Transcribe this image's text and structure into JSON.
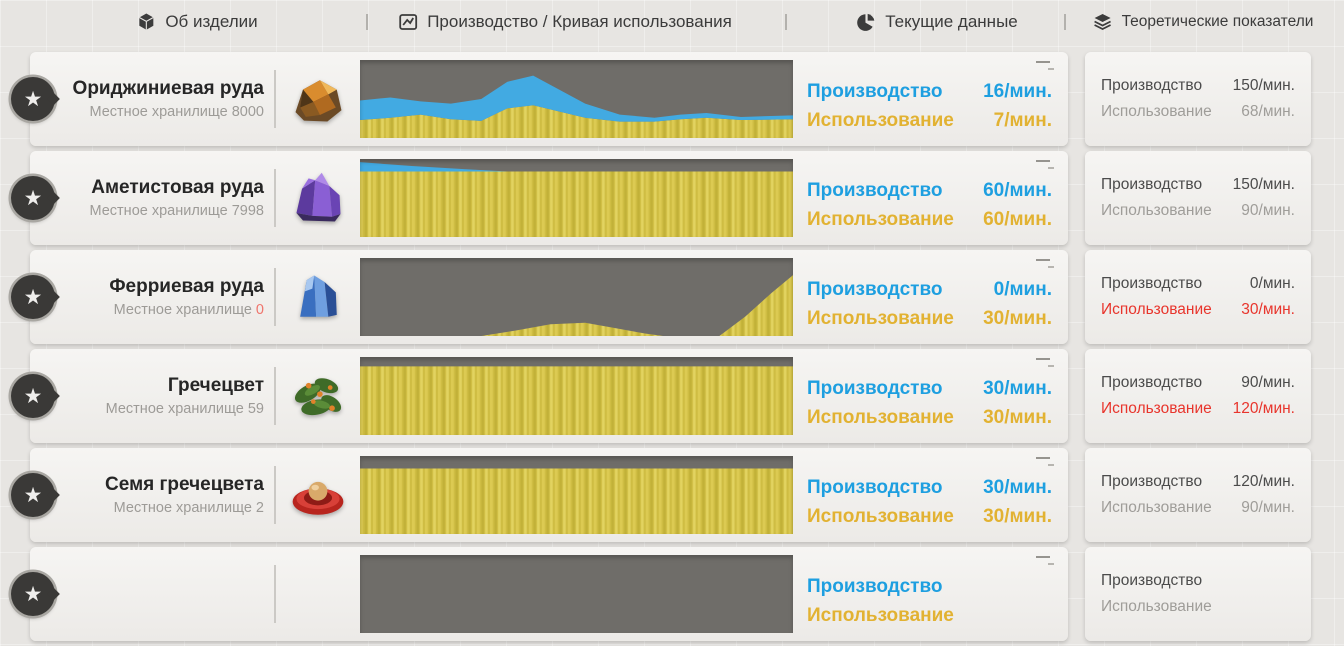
{
  "header": {
    "separator": "|",
    "tabs": [
      {
        "id": "about-item",
        "label": "Об изделии",
        "icon": "cube-icon"
      },
      {
        "id": "production-curve",
        "label": "Производство / Кривая использования",
        "icon": "line-chart-icon"
      },
      {
        "id": "current-data",
        "label": "Текущие данные",
        "icon": "pie-chart-icon"
      },
      {
        "id": "theoretical",
        "label": "Теоретические показатели",
        "icon": "layers-icon"
      }
    ]
  },
  "labels": {
    "production": "Производство",
    "usage": "Использование"
  },
  "colors": {
    "production_text": "#1e9fe0",
    "usage_text": "#e2b232",
    "alert_red": "#e8352c",
    "storage_alert": "#ef756c",
    "chart_bg": "#6f6d69",
    "chart_usage": "#d2c045",
    "chart_production": "#42aae2"
  },
  "rows": [
    {
      "name": "Ориджиниевая руда",
      "storage_label": "Местное хранилище",
      "storage_value": "8000",
      "storage_alert": false,
      "icon": "originium-ore-icon",
      "current": {
        "production_value": "16/мин.",
        "usage_value": "7/мин."
      },
      "theoretical": {
        "production_value": "150/мин.",
        "usage_value": "68/мин.",
        "usage_alert": false
      }
    },
    {
      "name": "Аметистовая руда",
      "storage_label": "Местное хранилище",
      "storage_value": "7998",
      "storage_alert": false,
      "icon": "amethyst-ore-icon",
      "current": {
        "production_value": "60/мин.",
        "usage_value": "60/мин."
      },
      "theoretical": {
        "production_value": "150/мин.",
        "usage_value": "90/мин.",
        "usage_alert": false
      }
    },
    {
      "name": "Ферриевая руда",
      "storage_label": "Местное хранилище",
      "storage_value": "0",
      "storage_alert": true,
      "icon": "ferric-ore-icon",
      "current": {
        "production_value": "0/мин.",
        "usage_value": "30/мин."
      },
      "theoretical": {
        "production_value": "0/мин.",
        "usage_value": "30/мин.",
        "usage_alert": true
      }
    },
    {
      "name": "Гречецвет",
      "storage_label": "Местное хранилище",
      "storage_value": "59",
      "storage_alert": false,
      "icon": "buckflower-icon",
      "current": {
        "production_value": "30/мин.",
        "usage_value": "30/мин."
      },
      "theoretical": {
        "production_value": "90/мин.",
        "usage_value": "120/мин.",
        "usage_alert": true
      }
    },
    {
      "name": "Семя гречецвета",
      "storage_label": "Местное хранилище",
      "storage_value": "2",
      "storage_alert": false,
      "icon": "buckflower-seed-icon",
      "current": {
        "production_value": "30/мин.",
        "usage_value": "30/мин."
      },
      "theoretical": {
        "production_value": "120/мин.",
        "usage_value": "90/мин.",
        "usage_alert": false
      }
    },
    {
      "name": "",
      "storage_label": "",
      "storage_value": "",
      "storage_alert": false,
      "icon": "item-icon",
      "partial": true,
      "current": {
        "production_value": "",
        "usage_value": ""
      },
      "theoretical": {
        "production_value": "",
        "usage_value": "",
        "usage_alert": false
      }
    }
  ],
  "chart_data": [
    {
      "type": "area",
      "series": [
        {
          "name": "Использование",
          "role": "usage",
          "color": "#d2c045",
          "points": [
            [
              0,
              0.23
            ],
            [
              0.07,
              0.26
            ],
            [
              0.14,
              0.3
            ],
            [
              0.21,
              0.24
            ],
            [
              0.28,
              0.22
            ],
            [
              0.34,
              0.38
            ],
            [
              0.4,
              0.42
            ],
            [
              0.46,
              0.34
            ],
            [
              0.52,
              0.26
            ],
            [
              0.6,
              0.21
            ],
            [
              0.68,
              0.21
            ],
            [
              0.74,
              0.24
            ],
            [
              0.8,
              0.26
            ],
            [
              0.88,
              0.23
            ],
            [
              1,
              0.24
            ]
          ]
        },
        {
          "name": "Производство",
          "role": "production",
          "color": "#42aae2",
          "points": [
            [
              0,
              0.48
            ],
            [
              0.07,
              0.52
            ],
            [
              0.14,
              0.47
            ],
            [
              0.21,
              0.44
            ],
            [
              0.28,
              0.5
            ],
            [
              0.34,
              0.72
            ],
            [
              0.4,
              0.8
            ],
            [
              0.46,
              0.62
            ],
            [
              0.52,
              0.44
            ],
            [
              0.6,
              0.3
            ],
            [
              0.68,
              0.26
            ],
            [
              0.74,
              0.3
            ],
            [
              0.8,
              0.32
            ],
            [
              0.88,
              0.27
            ],
            [
              1,
              0.29
            ]
          ]
        }
      ]
    },
    {
      "type": "area",
      "series": [
        {
          "name": "Использование",
          "role": "usage",
          "color": "#d2c045",
          "points": [
            [
              0,
              0.84
            ],
            [
              0.5,
              0.84
            ],
            [
              1,
              0.84
            ]
          ]
        },
        {
          "name": "Производство",
          "role": "production",
          "color": "#42aae2",
          "points": [
            [
              0,
              0.96
            ],
            [
              0.12,
              0.91
            ],
            [
              0.24,
              0.87
            ],
            [
              0.34,
              0.84
            ],
            [
              0.5,
              0.84
            ],
            [
              1,
              0.84
            ]
          ]
        }
      ]
    },
    {
      "type": "area",
      "series": [
        {
          "name": "Использование",
          "role": "usage",
          "color": "#d2c045",
          "points": [
            [
              0,
              0
            ],
            [
              0.28,
              0
            ],
            [
              0.36,
              0.07
            ],
            [
              0.44,
              0.15
            ],
            [
              0.52,
              0.17
            ],
            [
              0.58,
              0.11
            ],
            [
              0.66,
              0.03
            ],
            [
              0.7,
              0
            ],
            [
              0.83,
              0
            ],
            [
              0.89,
              0.25
            ],
            [
              0.95,
              0.55
            ],
            [
              1,
              0.78
            ]
          ]
        }
      ]
    },
    {
      "type": "area",
      "series": [
        {
          "name": "Использование",
          "role": "usage",
          "color": "#d2c045",
          "points": [
            [
              0,
              0.88
            ],
            [
              0.5,
              0.88
            ],
            [
              1,
              0.88
            ]
          ]
        }
      ]
    },
    {
      "type": "area",
      "series": [
        {
          "name": "Использование",
          "role": "usage",
          "color": "#d2c045",
          "points": [
            [
              0,
              0.84
            ],
            [
              0.5,
              0.84
            ],
            [
              1,
              0.84
            ]
          ]
        }
      ]
    },
    {
      "type": "area",
      "series": []
    }
  ]
}
